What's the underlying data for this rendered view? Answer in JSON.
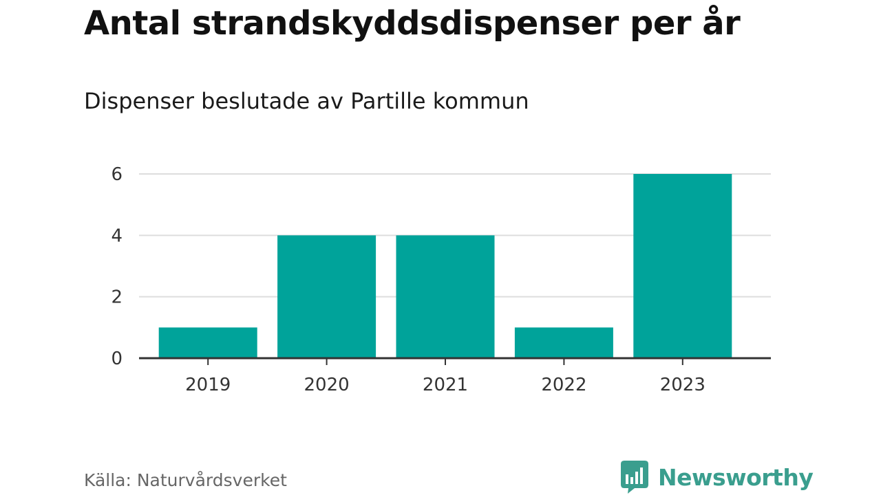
{
  "title": "Antal strandskyddsdispenser per år",
  "subtitle": "Dispenser beslutade av Partille kommun",
  "source": "Källa: Naturvårdsverket",
  "brand": {
    "name": "Newsworthy",
    "color": "#3a9e8e",
    "icon": "newsworthy-logo-icon"
  },
  "colors": {
    "bar": "#00a39a",
    "grid": "#dddddd",
    "axis": "#333333"
  },
  "chart_data": {
    "type": "bar",
    "title": "Antal strandskyddsdispenser per år",
    "subtitle": "Dispenser beslutade av Partille kommun",
    "categories": [
      "2019",
      "2020",
      "2021",
      "2022",
      "2023"
    ],
    "values": [
      1,
      4,
      4,
      1,
      6
    ],
    "xlabel": "",
    "ylabel": "",
    "ylim": [
      0,
      6
    ],
    "yticks": [
      0,
      2,
      4,
      6
    ],
    "grid": true,
    "legend": "none"
  }
}
